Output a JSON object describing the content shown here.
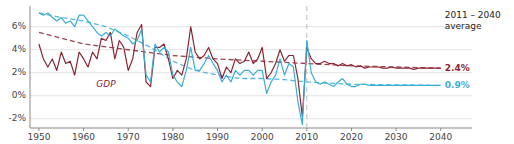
{
  "chart_data": {
    "type": "line",
    "annotations": [
      "GDP",
      "2011 – 2040\naverage",
      "2.4%",
      "0.9%"
    ],
    "xlim": [
      1948,
      2047
    ],
    "ylim": [
      -2.8,
      7.8
    ],
    "xticks": [
      1950,
      1960,
      1970,
      1980,
      1990,
      2000,
      2010,
      2020,
      2030,
      2040
    ],
    "yticks": [
      {
        "value": -2,
        "label": "-2%"
      },
      {
        "value": 0,
        "label": "0%"
      },
      {
        "value": 2,
        "label": "2%"
      },
      {
        "value": 4,
        "label": "4%"
      },
      {
        "value": 6,
        "label": "6%"
      }
    ],
    "grid": true,
    "vline": 2010,
    "series": [
      {
        "color": "#8B2535",
        "line_style": "dashed",
        "x": [
          1950,
          1960,
          1970,
          1980,
          1990,
          2000,
          2010,
          2020,
          2030,
          2040
        ],
        "values": [
          5.5,
          4.5,
          4.0,
          3.5,
          3.2,
          3.0,
          2.8,
          2.6,
          2.5,
          2.4
        ]
      },
      {
        "color": "#3BADD4",
        "line_style": "dashed",
        "x": [
          1950,
          1955,
          1960,
          1965,
          1970,
          1975,
          1980,
          1985,
          1990,
          1995,
          2000,
          2005,
          2010,
          2020,
          2030,
          2040
        ],
        "values": [
          7.2,
          6.8,
          6.5,
          6.0,
          5.2,
          4.2,
          3.0,
          2.2,
          1.8,
          1.5,
          1.5,
          1.4,
          1.2,
          1.0,
          0.95,
          0.9
        ]
      },
      {
        "color": "#8B2535",
        "line_style": "solid",
        "x": [
          1950,
          1951,
          1952,
          1953,
          1954,
          1955,
          1956,
          1957,
          1958,
          1959,
          1960,
          1961,
          1962,
          1963,
          1964,
          1965,
          1966,
          1967,
          1968,
          1969,
          1970,
          1971,
          1972,
          1973,
          1974,
          1975,
          1976,
          1977,
          1978,
          1979,
          1980,
          1981,
          1982,
          1983,
          1984,
          1985,
          1986,
          1987,
          1988,
          1989,
          1990,
          1991,
          1992,
          1993,
          1994,
          1995,
          1996,
          1997,
          1998,
          1999,
          2000,
          2001,
          2002,
          2003,
          2004,
          2005,
          2006,
          2007,
          2008,
          2009,
          2010
        ],
        "values": [
          4.5,
          3.2,
          2.5,
          3.2,
          2.2,
          3.8,
          2.8,
          3.0,
          1.8,
          3.8,
          3.2,
          2.5,
          3.8,
          3.2,
          5.0,
          4.8,
          5.5,
          3.2,
          4.8,
          4.2,
          2.2,
          3.2,
          5.5,
          6.2,
          1.2,
          0.8,
          4.2,
          4.2,
          4.5,
          3.2,
          1.5,
          2.2,
          1.8,
          3.2,
          6.0,
          3.8,
          3.2,
          3.5,
          4.2,
          3.2,
          2.8,
          1.5,
          2.5,
          2.0,
          3.2,
          2.8,
          3.0,
          3.8,
          2.8,
          3.2,
          4.2,
          1.5,
          2.0,
          2.8,
          4.0,
          3.0,
          3.5,
          3.5,
          1.5,
          -1.8,
          4.2
        ]
      },
      {
        "color": "#3BADD4",
        "line_style": "solid",
        "x": [
          1950,
          1951,
          1952,
          1953,
          1954,
          1955,
          1956,
          1957,
          1958,
          1959,
          1960,
          1961,
          1962,
          1963,
          1964,
          1965,
          1966,
          1967,
          1968,
          1969,
          1970,
          1971,
          1972,
          1973,
          1974,
          1975,
          1976,
          1977,
          1978,
          1979,
          1980,
          1981,
          1982,
          1983,
          1984,
          1985,
          1986,
          1987,
          1988,
          1989,
          1990,
          1991,
          1992,
          1993,
          1994,
          1995,
          1996,
          1997,
          1998,
          1999,
          2000,
          2001,
          2002,
          2003,
          2004,
          2005,
          2006,
          2007,
          2008,
          2009,
          2010
        ],
        "values": [
          7.2,
          7.0,
          7.2,
          6.8,
          6.5,
          6.8,
          6.3,
          6.5,
          6.0,
          7.0,
          7.0,
          6.5,
          6.0,
          5.5,
          5.2,
          5.5,
          5.2,
          5.8,
          5.5,
          5.2,
          5.0,
          4.5,
          4.8,
          5.8,
          1.8,
          1.2,
          4.5,
          3.8,
          4.2,
          3.8,
          1.8,
          1.2,
          0.8,
          2.2,
          4.2,
          2.2,
          2.2,
          2.8,
          3.5,
          2.8,
          2.2,
          1.2,
          1.8,
          1.2,
          2.2,
          1.8,
          2.2,
          2.2,
          1.8,
          2.2,
          2.2,
          0.2,
          1.2,
          1.8,
          3.2,
          1.8,
          2.8,
          2.5,
          -0.5,
          -2.5,
          4.8
        ]
      },
      {
        "color": "#8B2535",
        "line_style": "solid",
        "x": [
          2010,
          2011,
          2012,
          2013,
          2014,
          2015,
          2016,
          2017,
          2018,
          2019,
          2020,
          2021,
          2022,
          2023,
          2024,
          2025,
          2026,
          2027,
          2028,
          2029,
          2030,
          2031,
          2032,
          2033,
          2034,
          2035,
          2036,
          2037,
          2038,
          2039,
          2040
        ],
        "values": [
          4.2,
          3.2,
          2.8,
          2.8,
          3.0,
          2.8,
          2.8,
          2.6,
          2.8,
          2.6,
          2.7,
          2.5,
          2.6,
          2.4,
          2.5,
          2.5,
          2.5,
          2.4,
          2.4,
          2.5,
          2.4,
          2.4,
          2.4,
          2.4,
          2.3,
          2.4,
          2.4,
          2.4,
          2.4,
          2.4,
          2.4
        ]
      },
      {
        "color": "#3BADD4",
        "line_style": "solid",
        "x": [
          2010,
          2011,
          2012,
          2013,
          2014,
          2015,
          2016,
          2017,
          2018,
          2019,
          2020,
          2021,
          2022,
          2023,
          2024,
          2025,
          2026,
          2027,
          2028,
          2029,
          2030,
          2031,
          2032,
          2033,
          2034,
          2035,
          2036,
          2037,
          2038,
          2039,
          2040
        ],
        "values": [
          4.8,
          2.0,
          1.2,
          1.0,
          1.2,
          1.0,
          0.8,
          1.2,
          1.5,
          1.0,
          0.8,
          0.8,
          1.0,
          1.0,
          0.9,
          0.9,
          0.9,
          0.9,
          0.9,
          0.9,
          0.9,
          0.9,
          0.9,
          0.9,
          0.9,
          0.9,
          0.9,
          0.9,
          0.9,
          0.9,
          0.9
        ]
      }
    ]
  }
}
